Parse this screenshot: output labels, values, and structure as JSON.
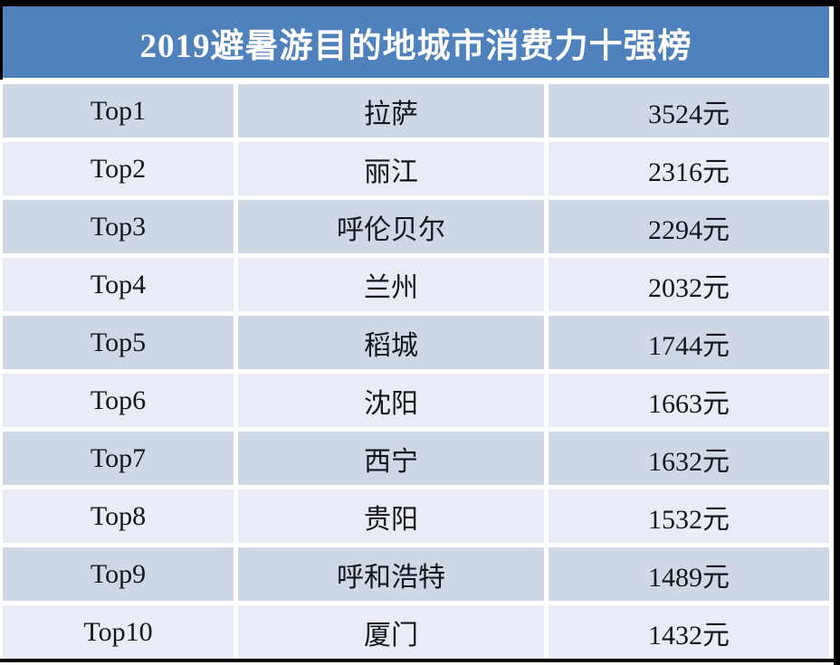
{
  "colors": {
    "header_bg": "#4f81bd",
    "band_dark": "#d0d7e5",
    "band_light": "#e9ecf4",
    "title_text": "#ffffff",
    "text": "#15151f",
    "frame": "#000000"
  },
  "chart_data": {
    "type": "table",
    "title": "2019避暑游目的地城市消费力十强榜",
    "unit_suffix": "元",
    "numeric_values": [
      3524,
      2316,
      2294,
      2032,
      1744,
      1663,
      1632,
      1532,
      1489,
      1432
    ],
    "rows": [
      {
        "rank": "Top1",
        "city": "拉萨",
        "price": "3524元"
      },
      {
        "rank": "Top2",
        "city": "丽江",
        "price": "2316元"
      },
      {
        "rank": "Top3",
        "city": "呼伦贝尔",
        "price": "2294元"
      },
      {
        "rank": "Top4",
        "city": "兰州",
        "price": "2032元"
      },
      {
        "rank": "Top5",
        "city": "稻城",
        "price": "1744元"
      },
      {
        "rank": "Top6",
        "city": "沈阳",
        "price": "1663元"
      },
      {
        "rank": "Top7",
        "city": "西宁",
        "price": "1632元"
      },
      {
        "rank": "Top8",
        "city": "贵阳",
        "price": "1532元"
      },
      {
        "rank": "Top9",
        "city": "呼和浩特",
        "price": "1489元"
      },
      {
        "rank": "Top10",
        "city": "厦门",
        "price": "1432元"
      }
    ]
  }
}
